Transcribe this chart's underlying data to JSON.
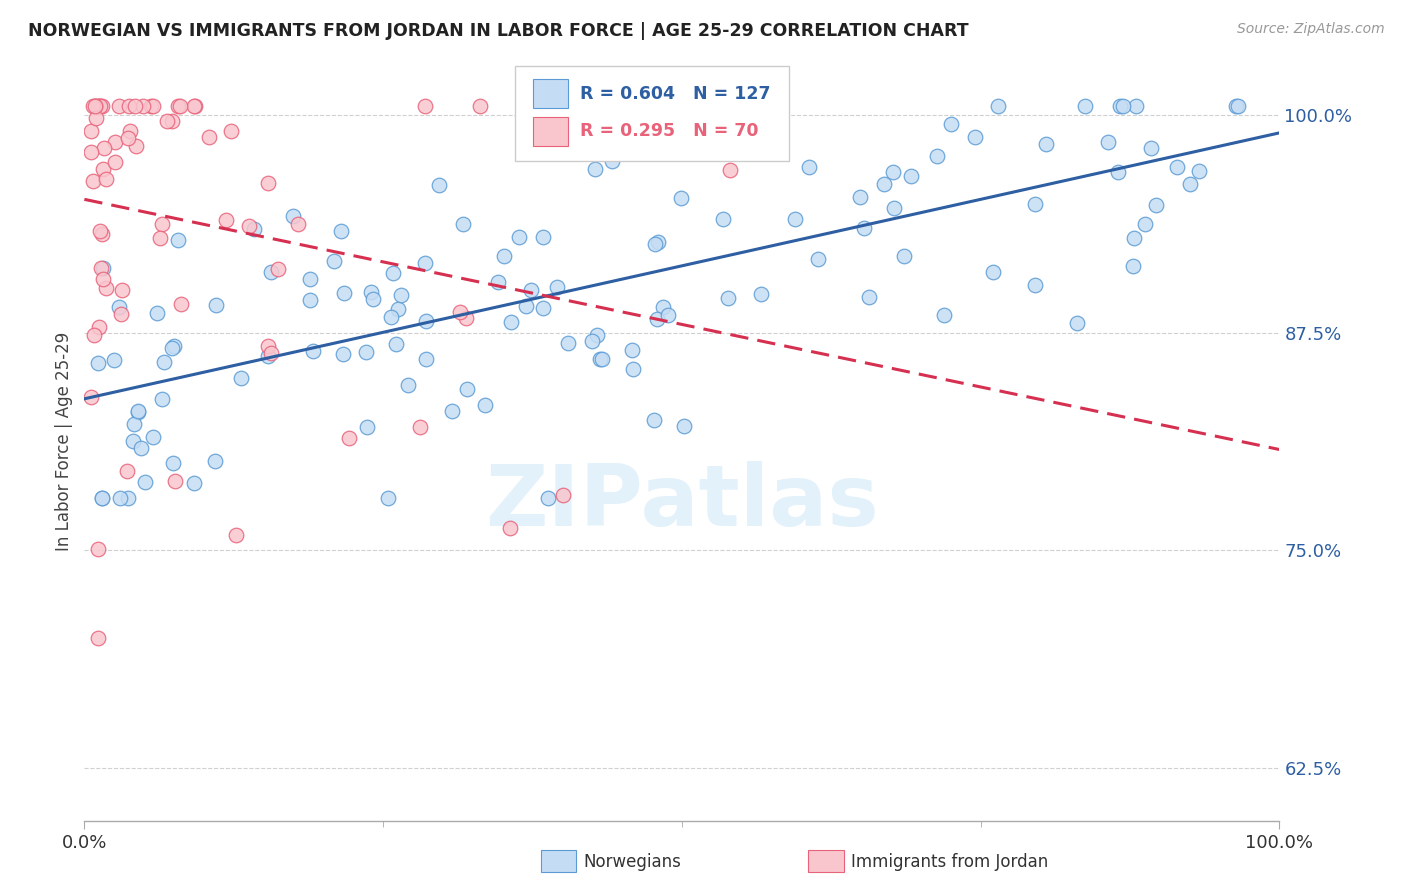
{
  "title": "NORWEGIAN VS IMMIGRANTS FROM JORDAN IN LABOR FORCE | AGE 25-29 CORRELATION CHART",
  "source_text": "Source: ZipAtlas.com",
  "ylabel": "In Labor Force | Age 25-29",
  "watermark": "ZIPatlas",
  "blue_R": 0.604,
  "blue_N": 127,
  "pink_R": 0.295,
  "pink_N": 70,
  "legend_label_blue": "Norwegians",
  "legend_label_pink": "Immigrants from Jordan",
  "xlim": [
    0.0,
    1.0
  ],
  "ylim": [
    0.595,
    1.03
  ],
  "yticks": [
    0.625,
    0.75,
    0.875,
    1.0
  ],
  "ytick_labels": [
    "62.5%",
    "75.0%",
    "87.5%",
    "100.0%"
  ],
  "xtick_labels": [
    "0.0%",
    "100.0%"
  ],
  "xticks": [
    0.0,
    1.0
  ],
  "blue_fill_color": "#c5ddf4",
  "blue_edge_color": "#5b9bd5",
  "pink_fill_color": "#f9c6ce",
  "pink_edge_color": "#e8627a",
  "blue_line_color": "#2e5fa3",
  "pink_line_color": "#d63050",
  "pink_dash_color": "#e8a0aa"
}
